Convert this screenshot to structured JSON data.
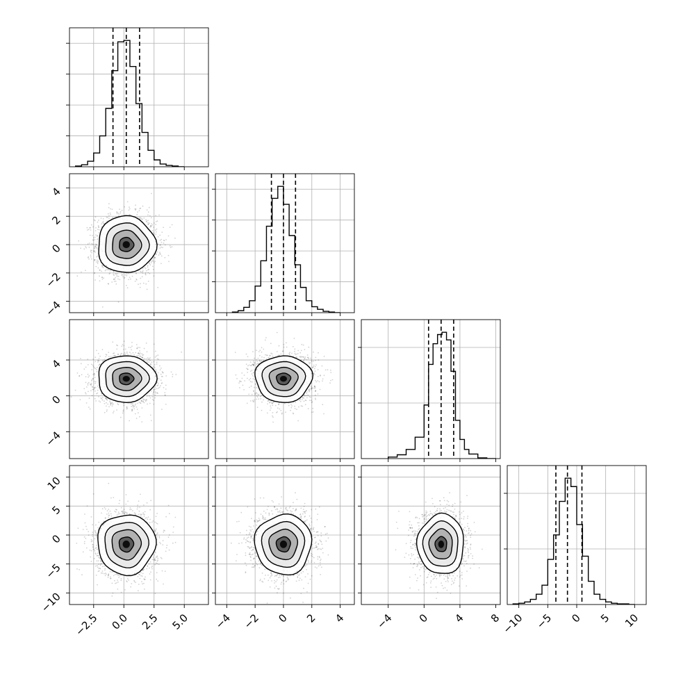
{
  "chart_data": {
    "type": "corner",
    "n_params": 4,
    "params": [
      {
        "index": 0,
        "mean": 0.2,
        "std": 1.2,
        "range": [
          -4.5,
          7.0
        ],
        "ticks": [
          -2.5,
          0.0,
          2.5,
          5.0
        ],
        "tick_labels": [
          "−2.5",
          "0.0",
          "2.5",
          "5.0"
        ],
        "quantiles": [
          -0.9,
          0.2,
          1.3
        ],
        "hist": {
          "edges": [
            -4.0,
            -3.5,
            -3.0,
            -2.5,
            -2.0,
            -1.5,
            -1.0,
            -0.5,
            0.0,
            0.5,
            1.0,
            1.5,
            2.0,
            2.5,
            3.0,
            3.5,
            4.0,
            4.5,
            5.0
          ],
          "counts": [
            1,
            3,
            8,
            20,
            45,
            85,
            140,
            182,
            184,
            146,
            92,
            50,
            24,
            10,
            4,
            2,
            1,
            0
          ]
        }
      },
      {
        "index": 1,
        "mean": 0.0,
        "std": 1.0,
        "range": [
          -4.8,
          5.0
        ],
        "ticks": [
          -4,
          -2,
          0,
          2,
          4
        ],
        "tick_labels": [
          "−4",
          "−2",
          "0",
          "2",
          "4"
        ],
        "quantiles": [
          -0.85,
          0.0,
          0.85
        ],
        "hist": {
          "edges": [
            -3.6,
            -3.2,
            -2.8,
            -2.4,
            -2.0,
            -1.6,
            -1.2,
            -0.8,
            -0.4,
            0.0,
            0.4,
            0.8,
            1.2,
            1.6,
            2.0,
            2.4,
            2.8,
            3.2,
            3.6,
            4.0
          ],
          "counts": [
            1,
            3,
            8,
            18,
            40,
            78,
            130,
            172,
            190,
            163,
            116,
            72,
            38,
            18,
            9,
            5,
            2,
            1,
            0
          ]
        }
      },
      {
        "index": 2,
        "mean": 1.9,
        "std": 1.3,
        "range": [
          -7.0,
          8.5
        ],
        "ticks": [
          -4,
          0,
          4
        ],
        "tick_labels": [
          "−4",
          "0",
          "4"
        ],
        "ticks_x": [
          -4,
          0,
          4,
          8
        ],
        "tick_labels_x": [
          "−4",
          "0",
          "4",
          "8"
        ],
        "quantiles": [
          0.5,
          1.9,
          3.3
        ],
        "hist": {
          "edges": [
            -4.0,
            -3.0,
            -2.0,
            -1.0,
            0.0,
            0.5,
            1.0,
            1.5,
            2.0,
            2.5,
            3.0,
            3.5,
            4.0,
            4.5,
            5.0,
            6.0,
            7.0,
            8.0
          ],
          "counts": [
            2,
            5,
            12,
            28,
            70,
            123,
            150,
            162,
            165,
            155,
            114,
            50,
            25,
            12,
            6,
            1,
            0
          ]
        }
      },
      {
        "index": 3,
        "mean": -1.6,
        "std": 2.6,
        "range": [
          -12.0,
          12.0
        ],
        "ticks": [
          -10,
          -5,
          0,
          5,
          10
        ],
        "tick_labels": [
          "−10",
          "−5",
          "0",
          "5",
          "10"
        ],
        "quantiles": [
          -3.6,
          -1.6,
          0.9
        ],
        "hist": {
          "edges": [
            -11.0,
            -10.0,
            -9.0,
            -8.0,
            -7.0,
            -6.0,
            -5.0,
            -4.0,
            -3.0,
            -2.0,
            -1.0,
            0.0,
            1.0,
            2.0,
            3.0,
            4.0,
            5.0,
            6.0,
            7.0,
            8.0,
            9.0,
            10.0
          ],
          "counts": [
            1,
            2,
            4,
            8,
            16,
            30,
            70,
            108,
            160,
            196,
            183,
            124,
            75,
            36,
            16,
            8,
            4,
            2,
            1,
            1,
            0
          ]
        }
      }
    ],
    "contour_levels": [
      0.5,
      1.0,
      1.5,
      2.0
    ],
    "grid": true,
    "xlabel": "",
    "ylabel": ""
  }
}
